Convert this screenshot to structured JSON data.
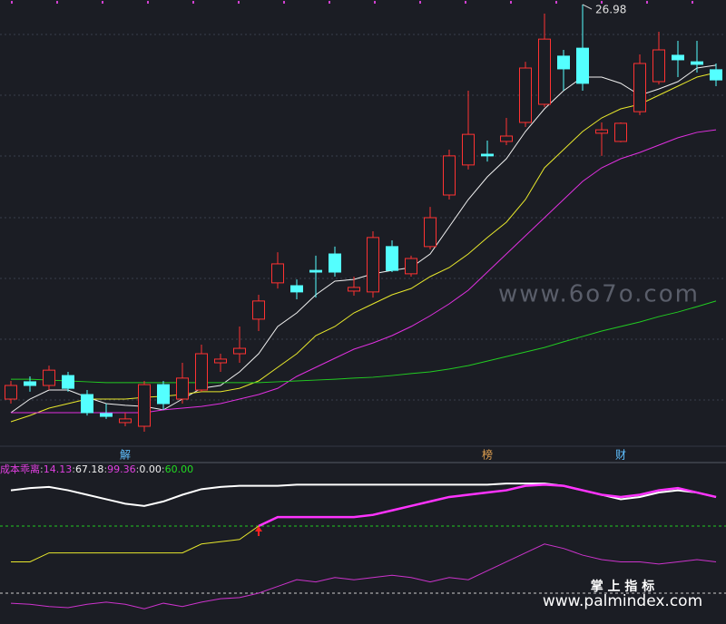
{
  "chart_data": [
    {
      "type": "candlestick",
      "categories": [
        null,
        null,
        null,
        null,
        null,
        null,
        "解",
        null,
        null,
        null,
        null,
        null,
        null,
        null,
        null,
        null,
        null,
        null,
        null,
        null,
        null,
        null,
        null,
        null,
        null,
        "榜",
        null,
        null,
        null,
        null,
        null,
        null,
        "财",
        null,
        null,
        null,
        null,
        null
      ],
      "open": [
        13.06,
        13.67,
        13.54,
        13.89,
        13.22,
        12.55,
        12.23,
        12.1,
        13.57,
        13.06,
        13.38,
        14.34,
        14.66,
        15.88,
        17.16,
        17.06,
        17.6,
        18.18,
        16.87,
        16.84,
        18.44,
        17.48,
        18.44,
        20.26,
        21.32,
        21.7,
        22.15,
        22.82,
        23.46,
        25.16,
        25.44,
        22.44,
        22.15,
        23.2,
        24.26,
        25.19,
        24.96,
        24.68
      ],
      "high": [
        13.7,
        13.86,
        14.24,
        14.02,
        13.38,
        12.9,
        12.58,
        13.7,
        13.7,
        14.34,
        14.98,
        14.66,
        15.62,
        16.74,
        18.24,
        17.28,
        18.12,
        18.44,
        17.38,
        18.98,
        18.66,
        18.12,
        19.84,
        21.86,
        23.94,
        22.18,
        22.98,
        24.96,
        26.66,
        25.38,
        26.98,
        22.82,
        22.82,
        25.22,
        26.02,
        25.7,
        25.7,
        24.9
      ],
      "low": [
        12.9,
        13.32,
        13.38,
        13.32,
        12.48,
        12.36,
        12.1,
        11.91,
        12.68,
        12.9,
        13.32,
        14.02,
        14.34,
        15.46,
        16.96,
        16.58,
        16.64,
        17.38,
        16.71,
        16.64,
        17.54,
        17.38,
        18.34,
        20.1,
        21.16,
        21.44,
        22.02,
        22.66,
        23.36,
        23.94,
        23.94,
        21.64,
        22.12,
        23.08,
        24.16,
        24.42,
        24.58,
        24.1
      ],
      "close": [
        13.54,
        13.54,
        14.08,
        13.44,
        12.58,
        12.45,
        12.36,
        13.57,
        12.9,
        13.8,
        14.66,
        14.47,
        14.85,
        16.52,
        17.83,
        16.84,
        17.54,
        17.54,
        17.0,
        18.76,
        17.6,
        18.02,
        19.46,
        21.64,
        22.4,
        21.64,
        22.34,
        24.74,
        25.76,
        24.71,
        24.2,
        22.56,
        22.79,
        24.9,
        25.38,
        25.03,
        24.87,
        24.32
      ],
      "up_color": "#ff3232",
      "down_color": "#54ffff",
      "series": [
        {
          "name": "MA5",
          "color": "#f0f0f0",
          "values": [
            12.58,
            13.06,
            13.38,
            13.38,
            13.12,
            12.9,
            12.84,
            12.8,
            12.68,
            13.06,
            13.44,
            13.54,
            14.02,
            14.66,
            15.62,
            16.1,
            16.74,
            17.22,
            17.28,
            17.48,
            17.6,
            17.7,
            18.18,
            19.14,
            20.1,
            20.9,
            21.54,
            22.5,
            23.3,
            23.94,
            24.42,
            24.42,
            24.2,
            23.78,
            24.0,
            24.26,
            24.74,
            24.84
          ]
        },
        {
          "name": "MA10",
          "color": "#e8e82c",
          "values": [
            12.26,
            12.48,
            12.74,
            12.9,
            13.06,
            13.06,
            13.06,
            13.12,
            13.16,
            13.22,
            13.32,
            13.32,
            13.44,
            13.7,
            14.18,
            14.66,
            15.3,
            15.62,
            16.1,
            16.42,
            16.74,
            16.96,
            17.38,
            17.7,
            18.18,
            18.76,
            19.3,
            20.1,
            21.22,
            21.86,
            22.5,
            22.98,
            23.3,
            23.46,
            23.78,
            24.1,
            24.42,
            24.58
          ]
        },
        {
          "name": "MA20",
          "color": "#e030e0",
          "values": [
            12.58,
            12.58,
            12.58,
            12.58,
            12.58,
            12.58,
            12.58,
            12.58,
            12.68,
            12.74,
            12.8,
            12.9,
            13.06,
            13.22,
            13.44,
            13.86,
            14.18,
            14.5,
            14.82,
            15.04,
            15.3,
            15.62,
            16.0,
            16.42,
            16.9,
            17.54,
            18.18,
            18.82,
            19.46,
            20.1,
            20.74,
            21.22,
            21.54,
            21.76,
            22.02,
            22.28,
            22.47,
            22.56
          ]
        },
        {
          "name": "MA60",
          "color": "#22cc22",
          "values": [
            13.76,
            13.76,
            13.73,
            13.7,
            13.67,
            13.64,
            13.64,
            13.64,
            13.64,
            13.64,
            13.64,
            13.64,
            13.64,
            13.64,
            13.67,
            13.7,
            13.73,
            13.76,
            13.8,
            13.83,
            13.89,
            13.96,
            14.02,
            14.12,
            14.24,
            14.4,
            14.56,
            14.72,
            14.88,
            15.08,
            15.27,
            15.46,
            15.62,
            15.78,
            15.97,
            16.13,
            16.32,
            16.52
          ]
        }
      ],
      "annotations": [
        {
          "value": 26.98,
          "label": "26.98"
        }
      ],
      "ylim": [
        11.46,
        27.14
      ],
      "grid": true,
      "watermarks": [
        "www.6o7o.com"
      ]
    },
    {
      "type": "line",
      "legend": {
        "name": "成本乖离",
        "separator": ":",
        "items": [
          {
            "label": "14.13",
            "color": "#e040e0"
          },
          {
            "label": "67.18",
            "color": "#f0f0f0"
          },
          {
            "label": "99.36",
            "color": "#e040e0"
          },
          {
            "label": "0.00",
            "color": "#f0f0f0"
          },
          {
            "label": "60.00",
            "color": "#22dd22"
          }
        ]
      },
      "series": [
        {
          "name": "white",
          "color": "#ffffff",
          "values": [
            92,
            94,
            95,
            92,
            88,
            84,
            80,
            78,
            82,
            88,
            93,
            95,
            96,
            96,
            96,
            97,
            97,
            97,
            97,
            97,
            97,
            97,
            97,
            97,
            97,
            97,
            98,
            98,
            98,
            96,
            92,
            88,
            84,
            86,
            90,
            92,
            90,
            86
          ]
        },
        {
          "name": "upper",
          "color": "#ff33ff",
          "values": [
            null,
            null,
            null,
            null,
            null,
            null,
            null,
            null,
            null,
            null,
            null,
            null,
            null,
            60,
            68,
            68,
            68,
            68,
            68,
            70,
            74,
            78,
            82,
            86,
            88,
            90,
            92,
            96,
            97,
            96,
            92,
            88,
            86,
            88,
            92,
            94,
            90,
            86
          ]
        },
        {
          "name": "yellow",
          "color": "#e8e82c",
          "values": [
            28,
            28,
            36,
            36,
            36,
            36,
            36,
            36,
            36,
            36,
            44,
            46,
            48,
            60,
            null,
            null,
            null,
            null,
            null,
            null,
            null,
            null,
            null,
            null,
            null,
            null,
            null,
            null,
            null,
            null,
            null,
            null,
            null,
            null,
            null,
            null,
            null,
            null
          ]
        },
        {
          "name": "lower",
          "color": "#cc33cc",
          "values": [
            -9,
            -10,
            -12,
            -13,
            -10,
            -8,
            -10,
            -14,
            -9,
            -12,
            -8,
            -5,
            -4,
            0,
            6,
            12,
            10,
            14,
            12,
            14,
            16,
            14,
            10,
            14,
            12,
            20,
            28,
            36,
            44,
            40,
            34,
            30,
            28,
            28,
            26,
            28,
            30,
            28
          ]
        }
      ],
      "reference_lines": [
        {
          "value": 0,
          "color": "#cccccc"
        },
        {
          "value": 60,
          "color": "#22cc22"
        }
      ],
      "ylim": [
        -27.6,
        116.8
      ],
      "watermarks": [
        "掌 上 指 标",
        "www.palmindex.com"
      ]
    }
  ]
}
